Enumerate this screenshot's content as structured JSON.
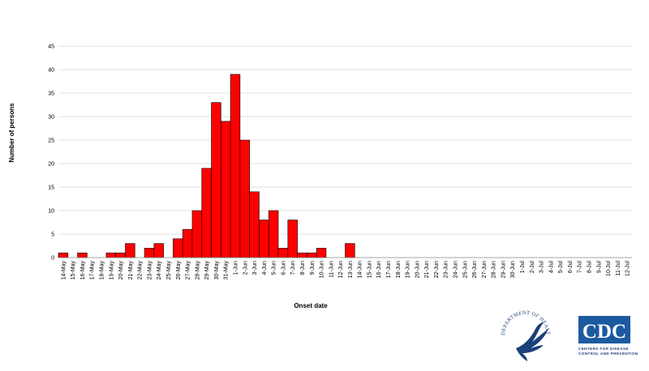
{
  "chart_data": {
    "type": "bar",
    "xlabel": "Onset date",
    "ylabel": "Number of persons",
    "ylim": [
      0,
      45
    ],
    "yticks": [
      0,
      5,
      10,
      15,
      20,
      25,
      30,
      35,
      40,
      45
    ],
    "grid": true,
    "bar_color": "#ff0000",
    "categories": [
      "14-May",
      "15-May",
      "16-May",
      "17-May",
      "18-May",
      "19-May",
      "20-May",
      "21-May",
      "22-May",
      "23-May",
      "24-May",
      "25-May",
      "26-May",
      "27-May",
      "28-May",
      "29-May",
      "30-May",
      "31-May",
      "1-Jun",
      "2-Jun",
      "3-Jun",
      "4-Jun",
      "5-Jun",
      "6-Jun",
      "7-Jun",
      "8-Jun",
      "9-Jun",
      "10-Jun",
      "11-Jun",
      "12-Jun",
      "13-Jun",
      "14-Jun",
      "15-Jun",
      "16-Jun",
      "17-Jun",
      "18-Jun",
      "19-Jun",
      "20-Jun",
      "21-Jun",
      "22-Jun",
      "23-Jun",
      "24-Jun",
      "25-Jun",
      "26-Jun",
      "27-Jun",
      "28-Jun",
      "29-Jun",
      "30-Jun",
      "1-Jul",
      "2-Jul",
      "3-Jul",
      "4-Jul",
      "5-Jul",
      "6-Jul",
      "7-Jul",
      "8-Jul",
      "9-Jul",
      "10-Jul",
      "11-Jul",
      "12-Jul"
    ],
    "values": [
      1,
      0,
      1,
      0,
      0,
      1,
      1,
      3,
      0,
      2,
      3,
      0,
      4,
      6,
      10,
      19,
      33,
      29,
      39,
      25,
      14,
      8,
      10,
      2,
      8,
      1,
      1,
      2,
      0,
      0,
      3,
      0,
      0,
      0,
      0,
      0,
      0,
      0,
      0,
      0,
      0,
      0,
      0,
      0,
      0,
      0,
      0,
      0,
      0,
      0,
      0,
      0,
      0,
      0,
      0,
      0,
      0,
      0,
      0,
      0
    ]
  },
  "logos": {
    "hhs_text": "DEPARTMENT OF HEALTH & HUMAN SERVICES USA",
    "cdc_letters": "CDC",
    "cdc_tagline_1": "CENTERS FOR DISEASE",
    "cdc_tagline_2": "CONTROL AND PREVENTION"
  }
}
